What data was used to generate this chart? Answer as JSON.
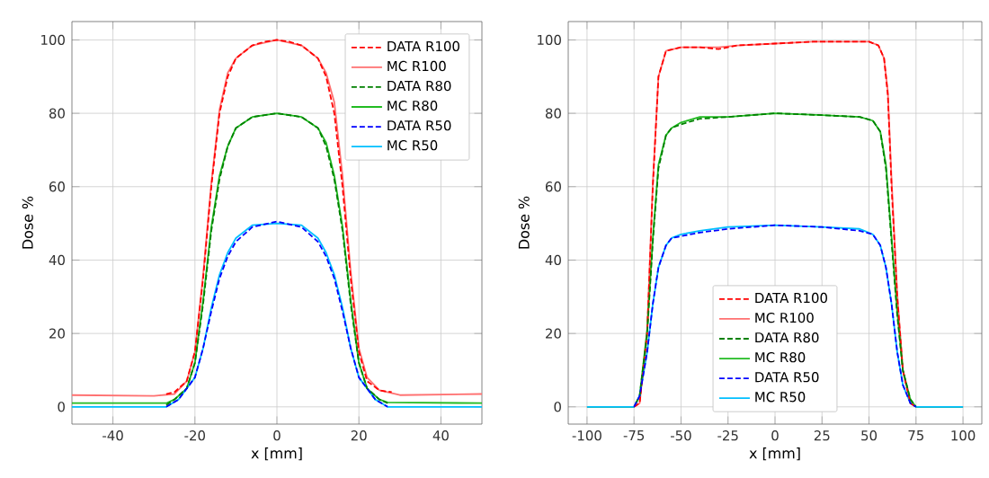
{
  "chart_data": [
    {
      "type": "line",
      "xlabel": "x [mm]",
      "ylabel": "Dose %",
      "xlim": [
        -50,
        50
      ],
      "ylim": [
        -4.7,
        105
      ],
      "xticks": [
        -40,
        -20,
        0,
        20,
        40
      ],
      "yticks": [
        0,
        20,
        40,
        60,
        80,
        100
      ],
      "grid": true,
      "legend": "top right",
      "series": [
        {
          "name": "DATA R100",
          "color": "#ff0000",
          "line_style": "dashed",
          "x": [
            -27,
            -25,
            -22,
            -20,
            -18,
            -16,
            -14,
            -12,
            -10,
            -6,
            -3,
            0,
            3,
            6,
            10,
            12,
            14,
            16,
            18,
            20,
            22,
            25,
            28
          ],
          "values": [
            3.5,
            4,
            7,
            15,
            35,
            60,
            80,
            90,
            95,
            98.5,
            99.5,
            100,
            99.5,
            98.5,
            95,
            90,
            80,
            60,
            35,
            15,
            7,
            4.5,
            4
          ]
        },
        {
          "name": "MC R100",
          "color": "#ff7070",
          "line_style": "solid",
          "x": [
            -50,
            -30,
            -25,
            -22,
            -20,
            -18,
            -16,
            -14,
            -12,
            -10,
            -6,
            0,
            6,
            10,
            12,
            14,
            16,
            18,
            20,
            22,
            25,
            30,
            50
          ],
          "values": [
            3.2,
            3,
            3.5,
            7,
            15,
            36,
            61,
            81,
            91,
            95,
            98.5,
            100,
            98.5,
            95,
            91,
            83,
            63,
            37,
            16,
            8,
            4.5,
            3.2,
            3.5
          ]
        },
        {
          "name": "DATA R80",
          "color": "#008000",
          "line_style": "dashed",
          "x": [
            -27,
            -25,
            -22,
            -20,
            -18,
            -16,
            -14,
            -12,
            -10,
            -6,
            0,
            6,
            10,
            12,
            14,
            16,
            18,
            20,
            22,
            25,
            27
          ],
          "values": [
            0.5,
            2,
            5,
            12,
            28,
            48,
            62,
            71,
            76,
            79,
            80,
            79,
            76,
            71,
            62,
            48,
            28,
            12,
            5,
            2,
            1
          ]
        },
        {
          "name": "MC R80",
          "color": "#22bb22",
          "line_style": "solid",
          "x": [
            -50,
            -27,
            -25,
            -22,
            -20,
            -18,
            -16,
            -14,
            -12,
            -10,
            -6,
            0,
            6,
            10,
            12,
            14,
            16,
            18,
            20,
            22,
            25,
            27,
            50
          ],
          "values": [
            1,
            1,
            2,
            5,
            12,
            29,
            49,
            63,
            71,
            76,
            79,
            80,
            79,
            76,
            72,
            63,
            49,
            29,
            12,
            5,
            2,
            1.2,
            1
          ]
        },
        {
          "name": "DATA R50",
          "color": "#0000ff",
          "line_style": "dashed",
          "x": [
            -27,
            -24,
            -20,
            -18,
            -16,
            -14,
            -12,
            -10,
            -6,
            0,
            6,
            10,
            12,
            14,
            16,
            18,
            20,
            24,
            27
          ],
          "values": [
            0,
            2,
            8,
            16,
            26,
            35,
            41,
            45,
            49,
            50.5,
            49,
            45,
            41,
            35,
            26,
            16,
            8,
            2,
            0
          ]
        },
        {
          "name": "MC R50",
          "color": "#00bfff",
          "line_style": "solid",
          "x": [
            -50,
            -27,
            -24,
            -20,
            -18,
            -16,
            -14,
            -12,
            -10,
            -6,
            0,
            6,
            10,
            12,
            14,
            16,
            18,
            20,
            24,
            27,
            50
          ],
          "values": [
            0,
            0,
            2,
            8,
            16,
            27,
            36,
            42,
            46,
            49.5,
            50,
            49.5,
            46,
            42,
            36,
            27,
            16,
            8,
            2,
            0,
            0
          ]
        }
      ]
    },
    {
      "type": "line",
      "xlabel": "x [mm]",
      "ylabel": "Dose %",
      "xlim": [
        -110,
        110
      ],
      "ylim": [
        -4.7,
        105
      ],
      "xticks": [
        -100,
        -75,
        -50,
        -25,
        0,
        25,
        50,
        75,
        100
      ],
      "yticks": [
        0,
        20,
        40,
        60,
        80,
        100
      ],
      "grid": true,
      "legend": "bottom",
      "series": [
        {
          "name": "DATA R100",
          "color": "#ff0000",
          "line_style": "dashed",
          "x": [
            -75,
            -72,
            -68,
            -65,
            -62,
            -58,
            -50,
            -40,
            -30,
            -20,
            0,
            20,
            40,
            50,
            55,
            58,
            60,
            62,
            65,
            68,
            72,
            75
          ],
          "values": [
            0,
            1,
            20,
            60,
            90,
            97,
            98,
            98,
            97.5,
            98.5,
            99,
            99.5,
            99.5,
            99.5,
            98.5,
            95,
            85,
            60,
            30,
            10,
            1,
            0
          ]
        },
        {
          "name": "MC R100",
          "color": "#ff7070",
          "line_style": "solid",
          "x": [
            -100,
            -75,
            -72,
            -68,
            -65,
            -62,
            -58,
            -50,
            -40,
            -30,
            -20,
            0,
            20,
            40,
            50,
            55,
            58,
            60,
            62,
            65,
            68,
            72,
            75,
            100
          ],
          "values": [
            0,
            0,
            1,
            21,
            61,
            90,
            97,
            98,
            98,
            98,
            98.5,
            99,
            99.5,
            99.5,
            99.5,
            98.5,
            95,
            86,
            62,
            31,
            10,
            1,
            0,
            0
          ]
        },
        {
          "name": "DATA R80",
          "color": "#008000",
          "line_style": "dashed",
          "x": [
            -74,
            -72,
            -68,
            -65,
            -62,
            -58,
            -55,
            -50,
            -40,
            -25,
            0,
            25,
            45,
            52,
            56,
            59,
            62,
            65,
            68,
            72,
            75
          ],
          "values": [
            1,
            3,
            20,
            45,
            65,
            74,
            76,
            77,
            78.5,
            79,
            80,
            79.5,
            79,
            78,
            75,
            65,
            45,
            25,
            10,
            2,
            0
          ]
        },
        {
          "name": "MC R80",
          "color": "#22bb22",
          "line_style": "solid",
          "x": [
            -100,
            -75,
            -72,
            -68,
            -65,
            -62,
            -58,
            -55,
            -50,
            -40,
            -25,
            0,
            25,
            45,
            52,
            56,
            59,
            62,
            65,
            68,
            72,
            75,
            100
          ],
          "values": [
            0,
            0,
            3,
            21,
            46,
            66,
            74,
            76,
            77.5,
            79,
            79,
            80,
            79.5,
            79,
            78,
            75,
            66,
            46,
            26,
            10,
            2,
            0,
            0
          ]
        },
        {
          "name": "DATA R50",
          "color": "#0000ff",
          "line_style": "dashed",
          "x": [
            -75,
            -72,
            -68,
            -65,
            -62,
            -58,
            -55,
            -50,
            -40,
            -25,
            0,
            25,
            45,
            52,
            56,
            59,
            62,
            65,
            68,
            72,
            75
          ],
          "values": [
            0,
            3,
            15,
            28,
            38,
            44,
            46,
            46.5,
            47.5,
            48.5,
            49.5,
            49,
            48,
            47,
            44,
            38,
            28,
            15,
            6,
            1,
            0
          ]
        },
        {
          "name": "MC R50",
          "color": "#00bfff",
          "line_style": "solid",
          "x": [
            -100,
            -75,
            -72,
            -68,
            -65,
            -62,
            -58,
            -55,
            -50,
            -40,
            -25,
            0,
            25,
            45,
            52,
            56,
            59,
            62,
            65,
            68,
            72,
            75,
            100
          ],
          "values": [
            0,
            0,
            3,
            15,
            28,
            38,
            44,
            46,
            47,
            48,
            49,
            49.5,
            49,
            48.5,
            47,
            44,
            38,
            28,
            15,
            6,
            1,
            0,
            0
          ]
        }
      ]
    }
  ]
}
